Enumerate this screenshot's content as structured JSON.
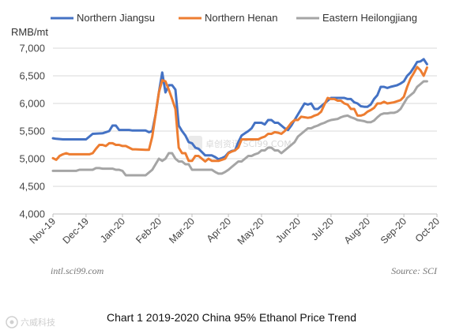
{
  "chart_data": {
    "type": "line",
    "title": "Chart 1 2019-2020 China 95% Ethanol Price Trend",
    "ylabel": "RMB/mt",
    "xlabel": "",
    "ylim": [
      4000,
      7000
    ],
    "yticks": [
      "4,000",
      "4,500",
      "5,000",
      "5,500",
      "6,000",
      "6,500",
      "7,000"
    ],
    "ytick_values": [
      4000,
      4500,
      5000,
      5500,
      6000,
      6500,
      7000
    ],
    "xticks": [
      "Nov-19",
      "Dec-19",
      "Jan-20",
      "Feb-20",
      "Mar-20",
      "Apr-20",
      "May-20",
      "Jun-20",
      "Jul-20",
      "Aug-20",
      "Sep-20",
      "Oct-20"
    ],
    "x_count": 117,
    "xtick_indices": [
      0,
      10,
      21,
      32,
      42,
      53,
      63,
      74,
      84,
      95,
      106,
      116
    ],
    "grid": true,
    "legend_position": "top",
    "series": [
      {
        "name": "Northern Jiangsu",
        "color": "#4472C4",
        "points": [
          [
            0,
            5370
          ],
          [
            1,
            5360
          ],
          [
            3,
            5350
          ],
          [
            10,
            5350
          ],
          [
            11,
            5400
          ],
          [
            12,
            5450
          ],
          [
            15,
            5460
          ],
          [
            16,
            5480
          ],
          [
            17,
            5500
          ],
          [
            18,
            5600
          ],
          [
            19,
            5600
          ],
          [
            20,
            5520
          ],
          [
            23,
            5520
          ],
          [
            24,
            5510
          ],
          [
            28,
            5510
          ],
          [
            29,
            5480
          ],
          [
            30,
            5500
          ],
          [
            31,
            5800
          ],
          [
            32,
            6200
          ],
          [
            33,
            6560
          ],
          [
            34,
            6200
          ],
          [
            35,
            6330
          ],
          [
            36,
            6330
          ],
          [
            37,
            6250
          ],
          [
            38,
            5600
          ],
          [
            39,
            5500
          ],
          [
            40,
            5420
          ],
          [
            41,
            5300
          ],
          [
            42,
            5280
          ],
          [
            43,
            5200
          ],
          [
            44,
            5180
          ],
          [
            45,
            5120
          ],
          [
            46,
            5060
          ],
          [
            48,
            5060
          ],
          [
            49,
            5030
          ],
          [
            50,
            4990
          ],
          [
            51,
            5010
          ],
          [
            52,
            5040
          ],
          [
            53,
            5110
          ],
          [
            54,
            5140
          ],
          [
            55,
            5150
          ],
          [
            56,
            5300
          ],
          [
            57,
            5420
          ],
          [
            58,
            5460
          ],
          [
            59,
            5500
          ],
          [
            60,
            5550
          ],
          [
            61,
            5650
          ],
          [
            62,
            5650
          ],
          [
            63,
            5650
          ],
          [
            64,
            5620
          ],
          [
            65,
            5700
          ],
          [
            66,
            5700
          ],
          [
            67,
            5650
          ],
          [
            68,
            5650
          ],
          [
            69,
            5600
          ],
          [
            70,
            5550
          ],
          [
            71,
            5520
          ],
          [
            72,
            5600
          ],
          [
            73,
            5700
          ],
          [
            74,
            5800
          ],
          [
            75,
            5900
          ],
          [
            76,
            6000
          ],
          [
            77,
            5980
          ],
          [
            78,
            6000
          ],
          [
            79,
            5900
          ],
          [
            80,
            5900
          ],
          [
            81,
            5950
          ],
          [
            82,
            6000
          ],
          [
            83,
            6050
          ],
          [
            84,
            6100
          ],
          [
            88,
            6100
          ],
          [
            89,
            6080
          ],
          [
            90,
            6080
          ],
          [
            91,
            6020
          ],
          [
            92,
            6000
          ],
          [
            93,
            5950
          ],
          [
            94,
            5940
          ],
          [
            95,
            5940
          ],
          [
            96,
            5980
          ],
          [
            97,
            6080
          ],
          [
            98,
            6150
          ],
          [
            99,
            6300
          ],
          [
            100,
            6300
          ],
          [
            101,
            6280
          ],
          [
            102,
            6300
          ],
          [
            104,
            6330
          ],
          [
            105,
            6360
          ],
          [
            106,
            6400
          ],
          [
            107,
            6500
          ],
          [
            108,
            6560
          ],
          [
            109,
            6650
          ],
          [
            110,
            6750
          ],
          [
            111,
            6760
          ],
          [
            112,
            6800
          ],
          [
            113,
            6710
          ]
        ]
      },
      {
        "name": "Northern Henan",
        "color": "#ED7D31",
        "points": [
          [
            0,
            5010
          ],
          [
            1,
            4980
          ],
          [
            2,
            5050
          ],
          [
            3,
            5080
          ],
          [
            4,
            5100
          ],
          [
            5,
            5080
          ],
          [
            11,
            5080
          ],
          [
            12,
            5100
          ],
          [
            13,
            5180
          ],
          [
            14,
            5250
          ],
          [
            15,
            5250
          ],
          [
            16,
            5230
          ],
          [
            17,
            5280
          ],
          [
            18,
            5280
          ],
          [
            19,
            5250
          ],
          [
            20,
            5250
          ],
          [
            21,
            5230
          ],
          [
            22,
            5230
          ],
          [
            23,
            5200
          ],
          [
            24,
            5170
          ],
          [
            25,
            5170
          ],
          [
            28,
            5160
          ],
          [
            29,
            5160
          ],
          [
            30,
            5400
          ],
          [
            31,
            5800
          ],
          [
            32,
            6200
          ],
          [
            33,
            6420
          ],
          [
            34,
            6400
          ],
          [
            35,
            6250
          ],
          [
            36,
            6080
          ],
          [
            37,
            5900
          ],
          [
            38,
            5200
          ],
          [
            39,
            5100
          ],
          [
            40,
            5100
          ],
          [
            41,
            4960
          ],
          [
            42,
            4960
          ],
          [
            43,
            5050
          ],
          [
            44,
            5050
          ],
          [
            45,
            5000
          ],
          [
            46,
            4950
          ],
          [
            47,
            5000
          ],
          [
            48,
            4960
          ],
          [
            49,
            4960
          ],
          [
            50,
            4960
          ],
          [
            51,
            4980
          ],
          [
            52,
            5000
          ],
          [
            53,
            5100
          ],
          [
            54,
            5130
          ],
          [
            55,
            5150
          ],
          [
            56,
            5200
          ],
          [
            57,
            5350
          ],
          [
            58,
            5350
          ],
          [
            59,
            5350
          ],
          [
            60,
            5350
          ],
          [
            61,
            5350
          ],
          [
            62,
            5350
          ],
          [
            63,
            5380
          ],
          [
            64,
            5400
          ],
          [
            65,
            5450
          ],
          [
            66,
            5450
          ],
          [
            67,
            5480
          ],
          [
            68,
            5470
          ],
          [
            69,
            5450
          ],
          [
            70,
            5500
          ],
          [
            71,
            5570
          ],
          [
            72,
            5650
          ],
          [
            73,
            5700
          ],
          [
            74,
            5700
          ],
          [
            75,
            5760
          ],
          [
            76,
            5750
          ],
          [
            77,
            5740
          ],
          [
            78,
            5750
          ],
          [
            79,
            5780
          ],
          [
            80,
            5800
          ],
          [
            81,
            5850
          ],
          [
            82,
            5980
          ],
          [
            83,
            6100
          ],
          [
            84,
            6080
          ],
          [
            85,
            6080
          ],
          [
            86,
            6050
          ],
          [
            87,
            6050
          ],
          [
            88,
            6000
          ],
          [
            89,
            5980
          ],
          [
            90,
            5900
          ],
          [
            91,
            5900
          ],
          [
            92,
            5780
          ],
          [
            93,
            5780
          ],
          [
            94,
            5800
          ],
          [
            95,
            5850
          ],
          [
            96,
            5880
          ],
          [
            97,
            5920
          ],
          [
            98,
            6000
          ],
          [
            99,
            6000
          ],
          [
            100,
            6030
          ],
          [
            101,
            6000
          ],
          [
            103,
            6020
          ],
          [
            104,
            6040
          ],
          [
            105,
            6060
          ],
          [
            106,
            6120
          ],
          [
            107,
            6300
          ],
          [
            108,
            6450
          ],
          [
            109,
            6550
          ],
          [
            110,
            6660
          ],
          [
            111,
            6600
          ],
          [
            112,
            6500
          ],
          [
            113,
            6650
          ]
        ]
      },
      {
        "name": "Eastern Heilongjiang",
        "color": "#A5A5A5",
        "points": [
          [
            0,
            4780
          ],
          [
            1,
            4780
          ],
          [
            3,
            4780
          ],
          [
            7,
            4780
          ],
          [
            8,
            4800
          ],
          [
            9,
            4800
          ],
          [
            12,
            4800
          ],
          [
            13,
            4830
          ],
          [
            14,
            4830
          ],
          [
            15,
            4820
          ],
          [
            18,
            4820
          ],
          [
            19,
            4800
          ],
          [
            20,
            4800
          ],
          [
            21,
            4780
          ],
          [
            22,
            4700
          ],
          [
            23,
            4700
          ],
          [
            28,
            4700
          ],
          [
            29,
            4750
          ],
          [
            30,
            4800
          ],
          [
            31,
            4900
          ],
          [
            32,
            5000
          ],
          [
            33,
            4960
          ],
          [
            34,
            5000
          ],
          [
            35,
            5100
          ],
          [
            36,
            5100
          ],
          [
            37,
            5000
          ],
          [
            38,
            4950
          ],
          [
            39,
            4950
          ],
          [
            40,
            4900
          ],
          [
            41,
            4900
          ],
          [
            42,
            4800
          ],
          [
            43,
            4800
          ],
          [
            48,
            4800
          ],
          [
            49,
            4760
          ],
          [
            50,
            4730
          ],
          [
            51,
            4730
          ],
          [
            52,
            4760
          ],
          [
            53,
            4800
          ],
          [
            54,
            4850
          ],
          [
            55,
            4900
          ],
          [
            56,
            4950
          ],
          [
            57,
            4950
          ],
          [
            58,
            5000
          ],
          [
            59,
            5050
          ],
          [
            60,
            5050
          ],
          [
            61,
            5080
          ],
          [
            62,
            5100
          ],
          [
            63,
            5150
          ],
          [
            64,
            5150
          ],
          [
            65,
            5200
          ],
          [
            66,
            5200
          ],
          [
            67,
            5150
          ],
          [
            68,
            5150
          ],
          [
            69,
            5100
          ],
          [
            70,
            5150
          ],
          [
            71,
            5200
          ],
          [
            72,
            5250
          ],
          [
            73,
            5300
          ],
          [
            74,
            5400
          ],
          [
            75,
            5450
          ],
          [
            76,
            5500
          ],
          [
            77,
            5550
          ],
          [
            78,
            5550
          ],
          [
            79,
            5580
          ],
          [
            80,
            5600
          ],
          [
            81,
            5630
          ],
          [
            82,
            5650
          ],
          [
            83,
            5680
          ],
          [
            84,
            5700
          ],
          [
            86,
            5720
          ],
          [
            87,
            5750
          ],
          [
            88,
            5770
          ],
          [
            89,
            5780
          ],
          [
            90,
            5750
          ],
          [
            91,
            5730
          ],
          [
            92,
            5700
          ],
          [
            93,
            5690
          ],
          [
            94,
            5680
          ],
          [
            95,
            5660
          ],
          [
            96,
            5660
          ],
          [
            97,
            5690
          ],
          [
            98,
            5750
          ],
          [
            99,
            5800
          ],
          [
            100,
            5820
          ],
          [
            101,
            5820
          ],
          [
            102,
            5830
          ],
          [
            103,
            5830
          ],
          [
            104,
            5850
          ],
          [
            105,
            5900
          ],
          [
            106,
            6000
          ],
          [
            107,
            6100
          ],
          [
            108,
            6150
          ],
          [
            109,
            6200
          ],
          [
            110,
            6300
          ],
          [
            111,
            6350
          ],
          [
            112,
            6400
          ],
          [
            113,
            6400
          ]
        ]
      }
    ]
  },
  "watermark_center": "卓创资讯 SCI99.COM",
  "source_left": "intl.sci99.com",
  "source_right": "Source: SCI",
  "footer_logo": "六威科技"
}
